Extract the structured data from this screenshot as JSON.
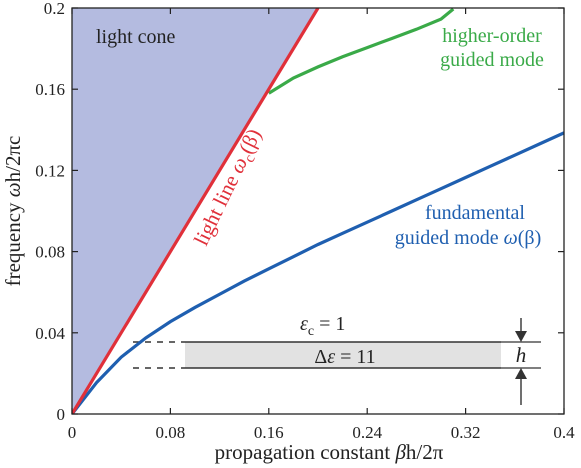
{
  "chart_data": {
    "type": "line",
    "xlabel_pre": "propagation constant ",
    "xlabel_beta": "β",
    "xlabel_post": "h/2π",
    "ylabel_pre": "frequency ",
    "ylabel_omega": "ω",
    "ylabel_post": "h/2πc",
    "xlim": [
      0,
      0.4
    ],
    "ylim": [
      0,
      0.2
    ],
    "x_ticks": [
      0,
      0.08,
      0.16,
      0.24,
      0.32,
      0.4
    ],
    "x_tick_labels": [
      "0",
      "0.08",
      "0.16",
      "0.24",
      "0.32",
      "0.4"
    ],
    "y_ticks": [
      0,
      0.04,
      0.08,
      0.12,
      0.16,
      0.2
    ],
    "y_tick_labels": [
      "0",
      "0.04",
      "0.08",
      "0.12",
      "0.16",
      "0.2"
    ],
    "grid": false,
    "series": [
      {
        "key": "light_line",
        "color": "#e0303a",
        "x": [
          0,
          0.2
        ],
        "y": [
          0,
          0.2
        ]
      },
      {
        "key": "fundamental",
        "color": "#1f5fb0",
        "x": [
          0,
          0.02,
          0.04,
          0.06,
          0.08,
          0.1,
          0.12,
          0.14,
          0.16,
          0.18,
          0.2,
          0.22,
          0.24,
          0.26,
          0.28,
          0.3,
          0.32,
          0.34,
          0.36,
          0.38,
          0.4
        ],
        "y": [
          0,
          0.0155,
          0.028,
          0.0375,
          0.0455,
          0.0525,
          0.059,
          0.0655,
          0.0715,
          0.0775,
          0.0835,
          0.089,
          0.0945,
          0.1,
          0.1055,
          0.111,
          0.1165,
          0.122,
          0.1275,
          0.133,
          0.1385
        ]
      },
      {
        "key": "higher_order",
        "color": "#3aaa48",
        "x": [
          0.16,
          0.18,
          0.2,
          0.22,
          0.24,
          0.26,
          0.28,
          0.3,
          0.31
        ],
        "y": [
          0.158,
          0.1655,
          0.171,
          0.176,
          0.1805,
          0.185,
          0.1895,
          0.1945,
          0.1995
        ]
      }
    ],
    "light_cone_fill": "#b4bbe0",
    "annotations": {
      "light_cone": "light cone",
      "light_line_text": "light line ",
      "light_line_omega": "ω",
      "light_line_sub": "c",
      "light_line_arg": "(β)",
      "higher_order_line1": "higher-order",
      "higher_order_line2": "guided mode",
      "fundamental_line1": "fundamental",
      "fundamental_line2_pre": "guided mode ",
      "fundamental_line2_omega": "ω",
      "fundamental_line2_arg": "(β)",
      "eps_c_symbol": "ε",
      "eps_c_sub": "c",
      "eps_c_value": " = 1",
      "delta_eps_prefix": "Δ",
      "delta_eps_symbol": "ε",
      "delta_eps_value": " = 11",
      "h_label": "h"
    }
  }
}
